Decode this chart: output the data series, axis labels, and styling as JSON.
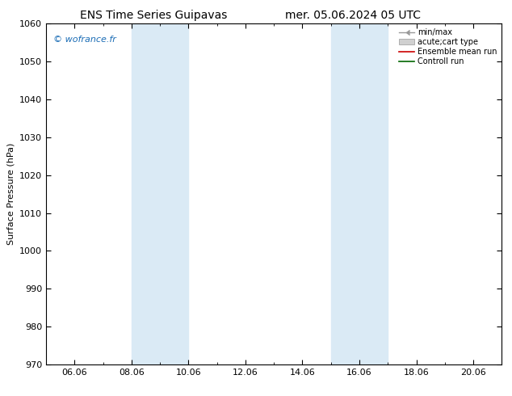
{
  "title_left": "ENS Time Series Guipavas",
  "title_right": "mer. 05.06.2024 05 UTC",
  "ylabel": "Surface Pressure (hPa)",
  "ylim": [
    970,
    1060
  ],
  "yticks": [
    970,
    980,
    990,
    1000,
    1010,
    1020,
    1030,
    1040,
    1050,
    1060
  ],
  "xstart_day": 5,
  "xend_day": 21,
  "xtick_days": [
    6,
    8,
    10,
    12,
    14,
    16,
    18,
    20
  ],
  "xtick_labels": [
    "06.06",
    "08.06",
    "10.06",
    "12.06",
    "14.06",
    "16.06",
    "18.06",
    "20.06"
  ],
  "shade_bands": [
    {
      "xmin_day": 8.0,
      "xmax_day": 10.0
    },
    {
      "xmin_day": 15.0,
      "xmax_day": 17.0
    }
  ],
  "shade_color": "#daeaf5",
  "watermark": "© wofrance.fr",
  "legend_entries": [
    "min/max",
    "acute;cart type",
    "Ensemble mean run",
    "Controll run"
  ],
  "background_color": "#ffffff",
  "title_fontsize": 10,
  "axis_label_fontsize": 8,
  "tick_fontsize": 8,
  "legend_fontsize": 7,
  "watermark_color": "#1a6cb5"
}
